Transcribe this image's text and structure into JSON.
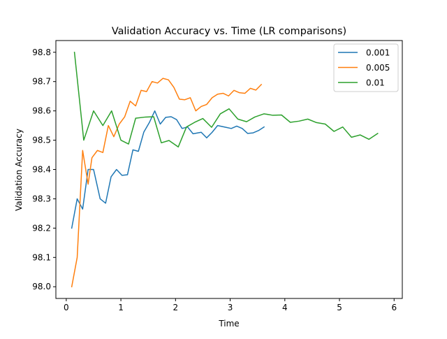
{
  "chart_data": {
    "type": "line",
    "title": "Validation Accuracy vs. Time (LR comparisons)",
    "xlabel": "Time",
    "ylabel": "Validation Accuracy",
    "xlim": [
      -0.19,
      6.15
    ],
    "ylim": [
      97.96,
      98.84
    ],
    "xticks": [
      0,
      1,
      2,
      3,
      4,
      5,
      6
    ],
    "xtick_labels": [
      "0",
      "1",
      "2",
      "3",
      "4",
      "5",
      "6"
    ],
    "yticks": [
      98.0,
      98.1,
      98.2,
      98.3,
      98.4,
      98.5,
      98.6,
      98.7,
      98.8
    ],
    "ytick_labels": [
      "98.0",
      "98.1",
      "98.2",
      "98.3",
      "98.4",
      "98.5",
      "98.6",
      "98.7",
      "98.8"
    ],
    "grid": false,
    "legend_position": "top-right",
    "series": [
      {
        "name": "0.001",
        "color": "#1f77b4",
        "points": [
          [
            0.1,
            98.2
          ],
          [
            0.2,
            98.3
          ],
          [
            0.3,
            98.265
          ],
          [
            0.4,
            98.4
          ],
          [
            0.5,
            98.4
          ],
          [
            0.62,
            98.3
          ],
          [
            0.72,
            98.285
          ],
          [
            0.82,
            98.375
          ],
          [
            0.92,
            98.4
          ],
          [
            1.02,
            98.38
          ],
          [
            1.12,
            98.382
          ],
          [
            1.22,
            98.467
          ],
          [
            1.32,
            98.462
          ],
          [
            1.42,
            98.528
          ],
          [
            1.52,
            98.56
          ],
          [
            1.62,
            98.6
          ],
          [
            1.72,
            98.555
          ],
          [
            1.82,
            98.578
          ],
          [
            1.92,
            98.58
          ],
          [
            2.02,
            98.57
          ],
          [
            2.12,
            98.54
          ],
          [
            2.22,
            98.545
          ],
          [
            2.32,
            98.522
          ],
          [
            2.47,
            98.527
          ],
          [
            2.57,
            98.508
          ],
          [
            2.67,
            98.527
          ],
          [
            2.77,
            98.55
          ],
          [
            2.92,
            98.544
          ],
          [
            3.02,
            98.54
          ],
          [
            3.12,
            98.548
          ],
          [
            3.22,
            98.54
          ],
          [
            3.32,
            98.523
          ],
          [
            3.42,
            98.525
          ],
          [
            3.52,
            98.533
          ],
          [
            3.62,
            98.545
          ]
        ]
      },
      {
        "name": "0.005",
        "color": "#ff7f0e",
        "points": [
          [
            0.1,
            98.0
          ],
          [
            0.2,
            98.1
          ],
          [
            0.3,
            98.465
          ],
          [
            0.4,
            98.35
          ],
          [
            0.47,
            98.44
          ],
          [
            0.57,
            98.465
          ],
          [
            0.67,
            98.458
          ],
          [
            0.77,
            98.55
          ],
          [
            0.87,
            98.512
          ],
          [
            0.97,
            98.555
          ],
          [
            1.07,
            98.58
          ],
          [
            1.17,
            98.633
          ],
          [
            1.27,
            98.617
          ],
          [
            1.37,
            98.67
          ],
          [
            1.47,
            98.666
          ],
          [
            1.57,
            98.7
          ],
          [
            1.67,
            98.695
          ],
          [
            1.77,
            98.711
          ],
          [
            1.87,
            98.706
          ],
          [
            1.97,
            98.68
          ],
          [
            2.07,
            98.64
          ],
          [
            2.17,
            98.638
          ],
          [
            2.27,
            98.645
          ],
          [
            2.37,
            98.6
          ],
          [
            2.47,
            98.615
          ],
          [
            2.57,
            98.622
          ],
          [
            2.67,
            98.645
          ],
          [
            2.77,
            98.657
          ],
          [
            2.87,
            98.66
          ],
          [
            2.97,
            98.651
          ],
          [
            3.07,
            98.67
          ],
          [
            3.17,
            98.662
          ],
          [
            3.27,
            98.66
          ],
          [
            3.37,
            98.677
          ],
          [
            3.47,
            98.671
          ],
          [
            3.57,
            98.69
          ]
        ]
      },
      {
        "name": "0.01",
        "color": "#2ca02c",
        "points": [
          [
            0.15,
            98.8
          ],
          [
            0.32,
            98.5
          ],
          [
            0.5,
            98.6
          ],
          [
            0.67,
            98.55
          ],
          [
            0.83,
            98.6
          ],
          [
            1.0,
            98.5
          ],
          [
            1.14,
            98.487
          ],
          [
            1.27,
            98.575
          ],
          [
            1.45,
            98.579
          ],
          [
            1.6,
            98.58
          ],
          [
            1.74,
            98.491
          ],
          [
            1.88,
            98.499
          ],
          [
            2.05,
            98.477
          ],
          [
            2.2,
            98.545
          ],
          [
            2.35,
            98.561
          ],
          [
            2.5,
            98.574
          ],
          [
            2.66,
            98.544
          ],
          [
            2.82,
            98.59
          ],
          [
            2.98,
            98.607
          ],
          [
            3.14,
            98.572
          ],
          [
            3.3,
            98.563
          ],
          [
            3.45,
            98.579
          ],
          [
            3.62,
            98.59
          ],
          [
            3.78,
            98.585
          ],
          [
            3.94,
            98.586
          ],
          [
            4.1,
            98.561
          ],
          [
            4.26,
            98.565
          ],
          [
            4.42,
            98.572
          ],
          [
            4.58,
            98.56
          ],
          [
            4.74,
            98.555
          ],
          [
            4.9,
            98.53
          ],
          [
            5.06,
            98.545
          ],
          [
            5.22,
            98.51
          ],
          [
            5.38,
            98.518
          ],
          [
            5.54,
            98.503
          ],
          [
            5.7,
            98.523
          ]
        ]
      }
    ]
  }
}
